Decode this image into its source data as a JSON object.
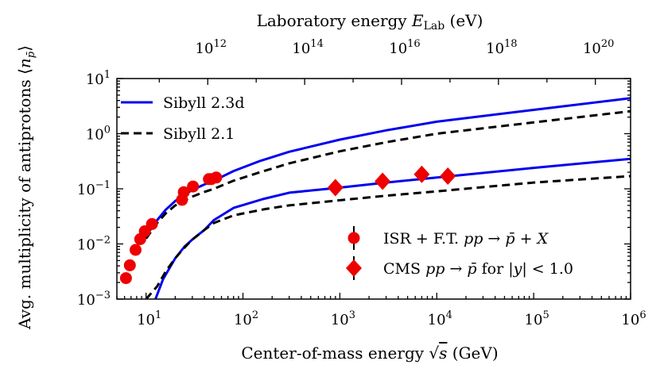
{
  "chart_data": {
    "type": "line",
    "xscale": "log",
    "yscale": "log",
    "xlim": [
      5.0,
      1000000
    ],
    "ylim": [
      0.001,
      10
    ],
    "xlabel": "Center-of-mass energy √s (GeV)",
    "ylabel": "Avg. multiplicity of antiprotons ⟨n̄p⟩",
    "top_xlabel": "Laboratory energy Eₗₐᵦ (eV)",
    "top_xlabel_main": "Laboratory energy ",
    "top_xlabel_E": "E",
    "top_xlabel_sub": "Lab",
    "top_xlabel_unit": " (eV)",
    "x_ticks": [
      {
        "value": 10,
        "base": "10",
        "exp": "1"
      },
      {
        "value": 100,
        "base": "10",
        "exp": "2"
      },
      {
        "value": 1000,
        "base": "10",
        "exp": "3"
      },
      {
        "value": 10000,
        "base": "10",
        "exp": "4"
      },
      {
        "value": 100000,
        "base": "10",
        "exp": "5"
      },
      {
        "value": 1000000,
        "base": "10",
        "exp": "6"
      }
    ],
    "y_ticks": [
      {
        "value": 0.001,
        "base": "10",
        "exp": "−3"
      },
      {
        "value": 0.01,
        "base": "10",
        "exp": "−2"
      },
      {
        "value": 0.1,
        "base": "10",
        "exp": "−1"
      },
      {
        "value": 1,
        "base": "10",
        "exp": "0"
      },
      {
        "value": 10,
        "base": "10",
        "exp": "1"
      }
    ],
    "top_ticks": [
      {
        "elab": "1e12",
        "base": "10",
        "exp": "12"
      },
      {
        "elab": "1e14",
        "base": "10",
        "exp": "14"
      },
      {
        "elab": "1e16",
        "base": "10",
        "exp": "16"
      },
      {
        "elab": "1e18",
        "base": "10",
        "exp": "18"
      },
      {
        "elab": "1e20",
        "base": "10",
        "exp": "20"
      }
    ],
    "series": [
      {
        "name": "Sibyll 2.3d",
        "group": "upper",
        "color": "#0000ee",
        "style": "solid",
        "x": [
          10,
          13,
          16,
          20,
          24,
          30,
          40,
          50,
          80,
          150,
          300,
          1000,
          3000,
          10000,
          100000,
          1000000
        ],
        "y": [
          0.014,
          0.027,
          0.042,
          0.06,
          0.075,
          0.095,
          0.12,
          0.14,
          0.21,
          0.32,
          0.47,
          0.78,
          1.15,
          1.65,
          2.7,
          4.4
        ]
      },
      {
        "name": "Sibyll 2.3d",
        "group": "lower",
        "color": "#0000ee",
        "style": "solid",
        "x": [
          12.5,
          15,
          20,
          25,
          30,
          40,
          50,
          80,
          160,
          300,
          1000,
          3000,
          10000,
          100000,
          1000000
        ],
        "y": [
          0.001,
          0.0023,
          0.0055,
          0.009,
          0.012,
          0.018,
          0.027,
          0.045,
          0.065,
          0.085,
          0.105,
          0.13,
          0.16,
          0.24,
          0.35
        ]
      },
      {
        "name": "Sibyll 2.1",
        "group": "upper",
        "color": "#000000",
        "style": "dashed",
        "x": [
          10,
          13,
          16,
          20,
          24,
          30,
          40,
          50,
          80,
          150,
          300,
          1000,
          3000,
          10000,
          100000,
          1000000
        ],
        "y": [
          0.0125,
          0.024,
          0.036,
          0.05,
          0.06,
          0.072,
          0.088,
          0.1,
          0.14,
          0.2,
          0.29,
          0.48,
          0.7,
          1.0,
          1.6,
          2.55
        ]
      },
      {
        "name": "Sibyll 2.1",
        "group": "lower",
        "color": "#000000",
        "style": "dashed",
        "x": [
          10,
          13,
          16,
          20,
          24,
          30,
          40,
          50,
          80,
          170,
          300,
          1000,
          3000,
          10000,
          100000,
          1000000
        ],
        "y": [
          0.001,
          0.0017,
          0.0032,
          0.0055,
          0.008,
          0.012,
          0.018,
          0.024,
          0.033,
          0.043,
          0.05,
          0.062,
          0.075,
          0.09,
          0.13,
          0.17
        ]
      }
    ],
    "points": [
      {
        "name": "ISR + F.T. pp → p̄ + X",
        "marker": "circle",
        "color": "#ee0000",
        "x": [
          6.2,
          6.8,
          7.8,
          8.7,
          9.7,
          11.5,
          23.5,
          24.5,
          30.5,
          44.5,
          47,
          53
        ],
        "y": [
          0.0024,
          0.0041,
          0.0078,
          0.0122,
          0.017,
          0.023,
          0.063,
          0.087,
          0.11,
          0.15,
          0.15,
          0.16
        ]
      },
      {
        "name": "CMS pp → p̄ for |y| < 1.0",
        "marker": "diamond",
        "color": "#ee0000",
        "x": [
          900,
          2760,
          7000,
          13000
        ],
        "y": [
          0.105,
          0.137,
          0.183,
          0.17
        ]
      }
    ],
    "legend": {
      "position": "top-left",
      "items": [
        {
          "label": "Sibyll 2.3d",
          "color": "#0000ee",
          "style": "solid"
        },
        {
          "label": "Sibyll 2.1",
          "color": "#000000",
          "style": "dashed"
        }
      ]
    },
    "legend2": {
      "position": "bottom-right",
      "isr_parts": [
        "ISR + F.T. ",
        "pp",
        " → ",
        "p̄",
        " + ",
        "X"
      ],
      "cms_parts": [
        "CMS ",
        "pp",
        " → ",
        "p̄",
        " for |",
        "y",
        "| < 1.0"
      ]
    }
  }
}
